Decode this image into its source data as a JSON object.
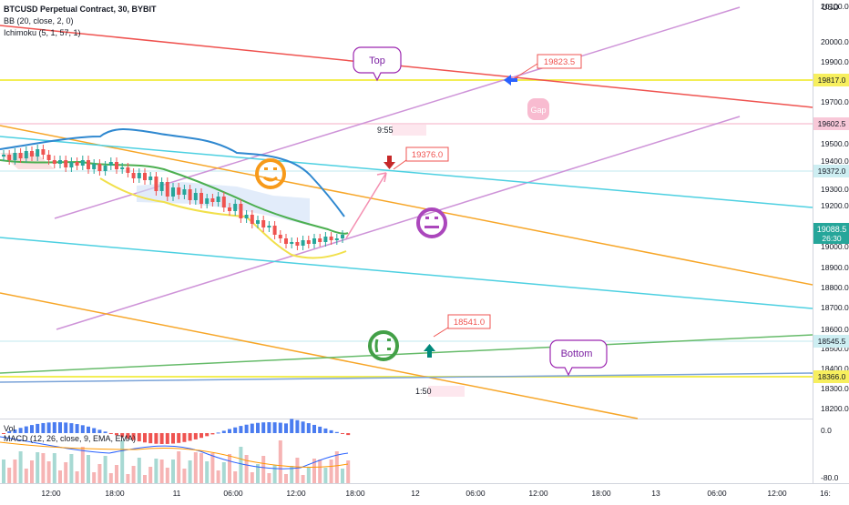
{
  "legend": {
    "symbol": "BTCUSD Perpetual Contract, 30, BYBIT",
    "bb": "BB (20, close, 2, 0)",
    "ichimoku": "Ichimoku (5, 1, 57, 1)"
  },
  "subpane": {
    "vol": "Vol",
    "macd": "MACD (12, 26, close, 9, EMA, EMA)"
  },
  "currency": "USD",
  "price_scale": {
    "ticks": [
      "20100.0",
      "20000.0",
      "19900.0",
      "19700.0",
      "19500.0",
      "19400.0",
      "19300.0",
      "19200.0",
      "19000.0",
      "18900.0",
      "18800.0",
      "18700.0",
      "18600.0",
      "18500.0",
      "18400.0",
      "18300.0",
      "18200.0"
    ],
    "badges": [
      {
        "label": "19817.0",
        "bg": "#f7ef5e",
        "fg": "#131722"
      },
      {
        "label": "19602.5",
        "bg": "#f8c8d8",
        "fg": "#131722"
      },
      {
        "label": "19372.0",
        "bg": "#cdeef2",
        "fg": "#131722"
      },
      {
        "label": "18545.5",
        "bg": "#cdeef2",
        "fg": "#131722"
      },
      {
        "label": "18366.0",
        "bg": "#f7ef5e",
        "fg": "#131722"
      }
    ],
    "current_price": "19088.5",
    "countdown": "26:30"
  },
  "macd_scale": [
    "0.0",
    "-80.0"
  ],
  "time_axis": [
    "12:00",
    "18:00",
    "11",
    "06:00",
    "12:00",
    "18:00",
    "12",
    "06:00",
    "12:00",
    "18:00",
    "13",
    "06:00",
    "12:00",
    "16:"
  ],
  "annotations": {
    "top": "Top",
    "bottom": "Bottom",
    "gap": "Gap",
    "price_high": "19823.5",
    "price_mid": "19376.0",
    "price_low": "18541.0",
    "time_label_1": "9:55",
    "time_label_2": "1:50"
  },
  "colors": {
    "bull": "#26a69a",
    "bear": "#ef5350",
    "trendline_purple": "#ce93d8",
    "trendline_red": "#ef5350",
    "trendline_orange": "#f7a628",
    "trendline_teal": "#4dd0e1",
    "trendline_green": "#66bb6a",
    "hline_yellow": "#f3ee55",
    "current_price": "#26a69a"
  },
  "icons": [
    "happy-face-icon",
    "neutral-face-icon",
    "confused-face-icon",
    "down-arrow-icon",
    "up-arrow-icon",
    "left-arrow-icon"
  ]
}
